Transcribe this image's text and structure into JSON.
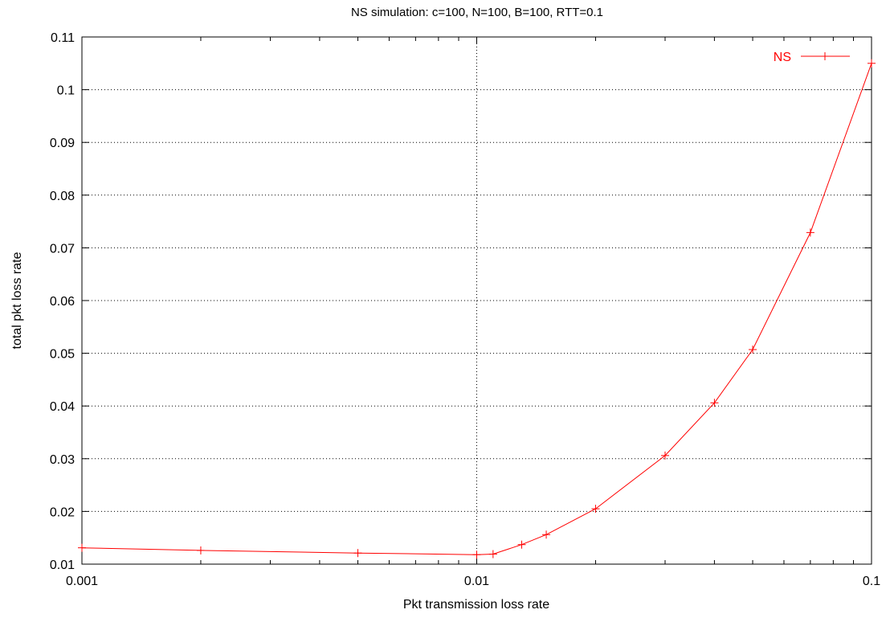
{
  "chart_data": {
    "type": "line",
    "title": "NS simulation: c=100, N=100, B=100, RTT=0.1",
    "xlabel": "Pkt transmission loss rate",
    "ylabel": "total pkt loss rate",
    "xscale": "log",
    "xlim": [
      0.001,
      0.1
    ],
    "ylim": [
      0.01,
      0.11
    ],
    "xticks": [
      0.001,
      0.01,
      0.1
    ],
    "xtick_labels": [
      "0.001",
      "0.01",
      "0.1"
    ],
    "yticks": [
      0.01,
      0.02,
      0.03,
      0.04,
      0.05,
      0.06,
      0.07,
      0.08,
      0.09,
      0.1,
      0.11
    ],
    "ytick_labels": [
      "0.01",
      "0.02",
      "0.03",
      "0.04",
      "0.05",
      "0.06",
      "0.07",
      "0.08",
      "0.09",
      "0.1",
      "0.11"
    ],
    "grid": true,
    "legend_position": "top-right",
    "series": [
      {
        "name": "NS",
        "color": "#ff0000",
        "marker": "plus",
        "points": [
          {
            "x": 0.001,
            "y": 0.0131
          },
          {
            "x": 0.002,
            "y": 0.0126
          },
          {
            "x": 0.005,
            "y": 0.0121
          },
          {
            "x": 0.01,
            "y": 0.0118
          },
          {
            "x": 0.011,
            "y": 0.0119
          },
          {
            "x": 0.013,
            "y": 0.0137
          },
          {
            "x": 0.015,
            "y": 0.0156
          },
          {
            "x": 0.02,
            "y": 0.0205
          },
          {
            "x": 0.03,
            "y": 0.0306
          },
          {
            "x": 0.04,
            "y": 0.0406
          },
          {
            "x": 0.05,
            "y": 0.0507
          },
          {
            "x": 0.07,
            "y": 0.0729
          },
          {
            "x": 0.1,
            "y": 0.105
          }
        ]
      }
    ]
  }
}
